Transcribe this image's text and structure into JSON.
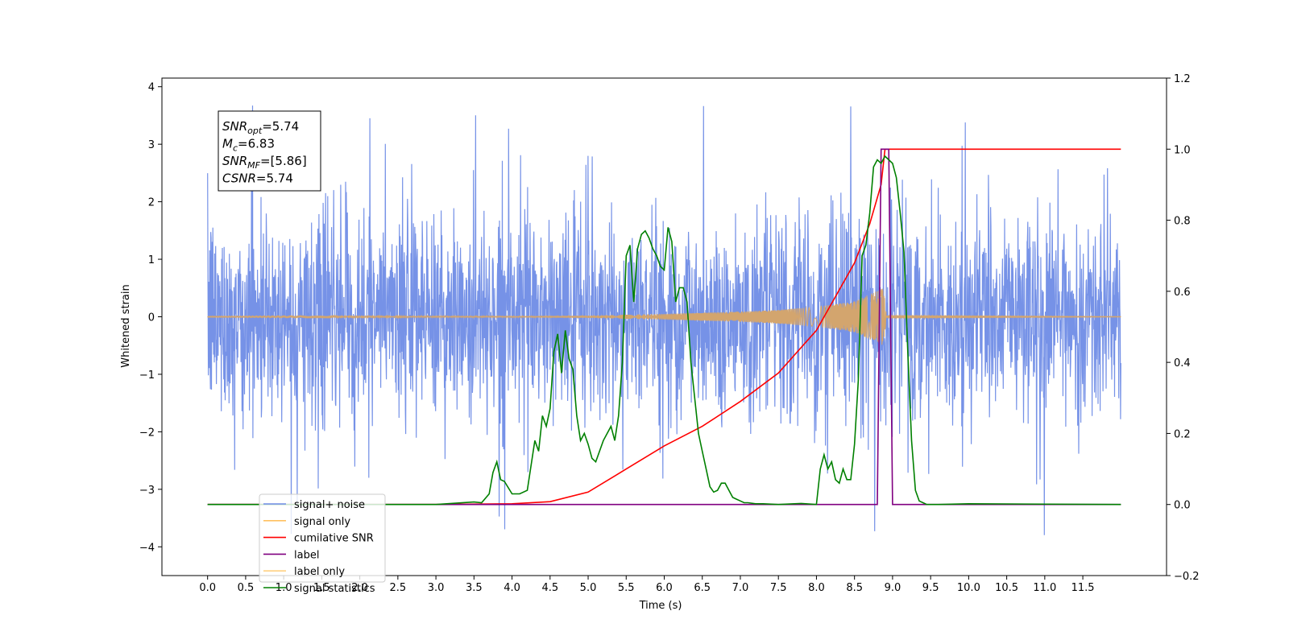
{
  "chart_data": {
    "type": "line",
    "xlabel": "Time (s)",
    "ylabel": "Whitened strain",
    "xlim": [
      -0.6,
      12.6
    ],
    "ylim": [
      -4.5,
      4.15
    ],
    "y2lim": [
      -0.2,
      1.2
    ],
    "x_ticks": [
      "0.0",
      "0.5",
      "1.0",
      "1.5",
      "2.0",
      "2.5",
      "3.0",
      "3.5",
      "4.0",
      "4.5",
      "5.0",
      "5.5",
      "6.0",
      "6.5",
      "7.0",
      "7.5",
      "8.0",
      "8.5",
      "9.0",
      "9.5",
      "10.0",
      "10.5",
      "11.0",
      "11.5"
    ],
    "y_ticks": [
      "4",
      "3",
      "2",
      "1",
      "0",
      "−1",
      "−2",
      "−3",
      "−4"
    ],
    "y_tick_values": [
      4,
      3,
      2,
      1,
      0,
      -1,
      -2,
      -3,
      -4
    ],
    "y2_ticks": [
      "1.2",
      "1.0",
      "0.8",
      "0.6",
      "0.4",
      "0.2",
      "0.0",
      "−0.2"
    ],
    "y2_tick_values": [
      1.2,
      1.0,
      0.8,
      0.6,
      0.4,
      0.2,
      0.0,
      -0.2
    ],
    "grid": false,
    "legend_position": "lower-left",
    "legend": [
      {
        "label": "signal+ noise",
        "color": "#6f8ce6"
      },
      {
        "label": "signal only",
        "color": "#ffc060"
      },
      {
        "label": "cumilative SNR",
        "color": "#ff0000"
      },
      {
        "label": "label",
        "color": "#800080"
      },
      {
        "label": "label only",
        "color": "#ffd080"
      },
      {
        "label": "signal statistics",
        "color": "#008000"
      }
    ],
    "annotation": [
      {
        "base": "SNR",
        "sub": "opt",
        "rest": "=5.74"
      },
      {
        "base": "M",
        "sub": "c",
        "rest": "=6.83"
      },
      {
        "base": "SNR",
        "sub": "MF",
        "rest": "=[5.86]"
      },
      {
        "base": "CSNR",
        "sub": "",
        "rest": "=5.74"
      }
    ],
    "series": [
      {
        "name": "signal+ noise",
        "axis": "left",
        "color": "#6f8ce6",
        "t_start": 0.0,
        "t_end": 12.0,
        "noise_sigma": 0.9,
        "envelope": [
          [
            0.0,
            2.0
          ],
          [
            1.0,
            2.2
          ],
          [
            5.0,
            2.3
          ],
          [
            9.0,
            2.6
          ],
          [
            12.0,
            2.0
          ]
        ]
      },
      {
        "name": "signal only",
        "axis": "left",
        "color": "#d3a56e",
        "amplitude": [
          [
            0.0,
            0.005
          ],
          [
            4.0,
            0.01
          ],
          [
            5.0,
            0.02
          ],
          [
            6.0,
            0.05
          ],
          [
            7.0,
            0.09
          ],
          [
            7.5,
            0.12
          ],
          [
            8.0,
            0.17
          ],
          [
            8.5,
            0.27
          ],
          [
            8.8,
            0.45
          ],
          [
            8.88,
            0.5
          ],
          [
            8.92,
            0.02
          ],
          [
            12.0,
            0.005
          ]
        ]
      },
      {
        "name": "cumilative SNR",
        "axis": "right",
        "color": "#ff0000",
        "x": [
          0.0,
          3.0,
          4.0,
          4.5,
          5.0,
          5.5,
          6.0,
          6.5,
          7.0,
          7.5,
          8.0,
          8.5,
          8.7,
          8.85,
          8.9,
          12.0
        ],
        "y": [
          0.0,
          0.0,
          0.002,
          0.008,
          0.035,
          0.1,
          0.165,
          0.22,
          0.29,
          0.37,
          0.49,
          0.68,
          0.79,
          0.9,
          1.0,
          1.0
        ]
      },
      {
        "name": "label",
        "axis": "right",
        "color": "#800080",
        "x": [
          0.0,
          8.8,
          8.85,
          8.95,
          9.0,
          12.0
        ],
        "y": [
          0.0,
          0.0,
          1.0,
          1.0,
          0.0,
          0.0
        ]
      },
      {
        "name": "signal statistics",
        "axis": "right",
        "color": "#008000",
        "x": [
          0.0,
          3.0,
          3.5,
          3.6,
          3.7,
          3.75,
          3.8,
          3.85,
          3.9,
          4.0,
          4.1,
          4.2,
          4.3,
          4.35,
          4.4,
          4.45,
          4.5,
          4.55,
          4.6,
          4.65,
          4.7,
          4.75,
          4.8,
          4.85,
          4.9,
          4.95,
          5.0,
          5.05,
          5.1,
          5.15,
          5.2,
          5.3,
          5.35,
          5.4,
          5.45,
          5.5,
          5.55,
          5.6,
          5.65,
          5.7,
          5.75,
          5.8,
          5.85,
          5.9,
          5.95,
          6.0,
          6.05,
          6.1,
          6.15,
          6.2,
          6.25,
          6.3,
          6.35,
          6.4,
          6.45,
          6.5,
          6.55,
          6.6,
          6.65,
          6.7,
          6.75,
          6.8,
          6.85,
          6.9,
          6.95,
          7.0,
          7.05,
          7.1,
          7.2,
          7.3,
          7.5,
          7.8,
          8.0,
          8.05,
          8.1,
          8.15,
          8.2,
          8.25,
          8.3,
          8.35,
          8.4,
          8.45,
          8.5,
          8.55,
          8.6,
          8.65,
          8.7,
          8.75,
          8.8,
          8.85,
          8.9,
          8.95,
          9.0,
          9.05,
          9.1,
          9.15,
          9.2,
          9.25,
          9.3,
          9.35,
          9.4,
          9.45,
          9.5,
          9.6,
          10.0,
          12.0
        ],
        "y": [
          0.0,
          0.0,
          0.007,
          0.005,
          0.03,
          0.09,
          0.12,
          0.07,
          0.065,
          0.03,
          0.03,
          0.04,
          0.18,
          0.15,
          0.25,
          0.22,
          0.27,
          0.43,
          0.48,
          0.37,
          0.49,
          0.41,
          0.38,
          0.25,
          0.18,
          0.2,
          0.17,
          0.13,
          0.12,
          0.15,
          0.18,
          0.22,
          0.18,
          0.25,
          0.4,
          0.7,
          0.73,
          0.57,
          0.72,
          0.76,
          0.77,
          0.75,
          0.72,
          0.7,
          0.67,
          0.66,
          0.78,
          0.74,
          0.57,
          0.61,
          0.61,
          0.57,
          0.4,
          0.3,
          0.2,
          0.15,
          0.1,
          0.05,
          0.035,
          0.04,
          0.06,
          0.06,
          0.04,
          0.02,
          0.015,
          0.01,
          0.005,
          0.005,
          0.002,
          0.002,
          0.0,
          0.003,
          0.0,
          0.1,
          0.14,
          0.1,
          0.12,
          0.07,
          0.06,
          0.1,
          0.07,
          0.07,
          0.17,
          0.35,
          0.7,
          0.73,
          0.82,
          0.95,
          0.97,
          0.96,
          0.98,
          0.97,
          0.96,
          0.92,
          0.82,
          0.71,
          0.43,
          0.18,
          0.04,
          0.01,
          0.005,
          0.0,
          0.0,
          0.0,
          0.002,
          0.0
        ]
      }
    ]
  }
}
